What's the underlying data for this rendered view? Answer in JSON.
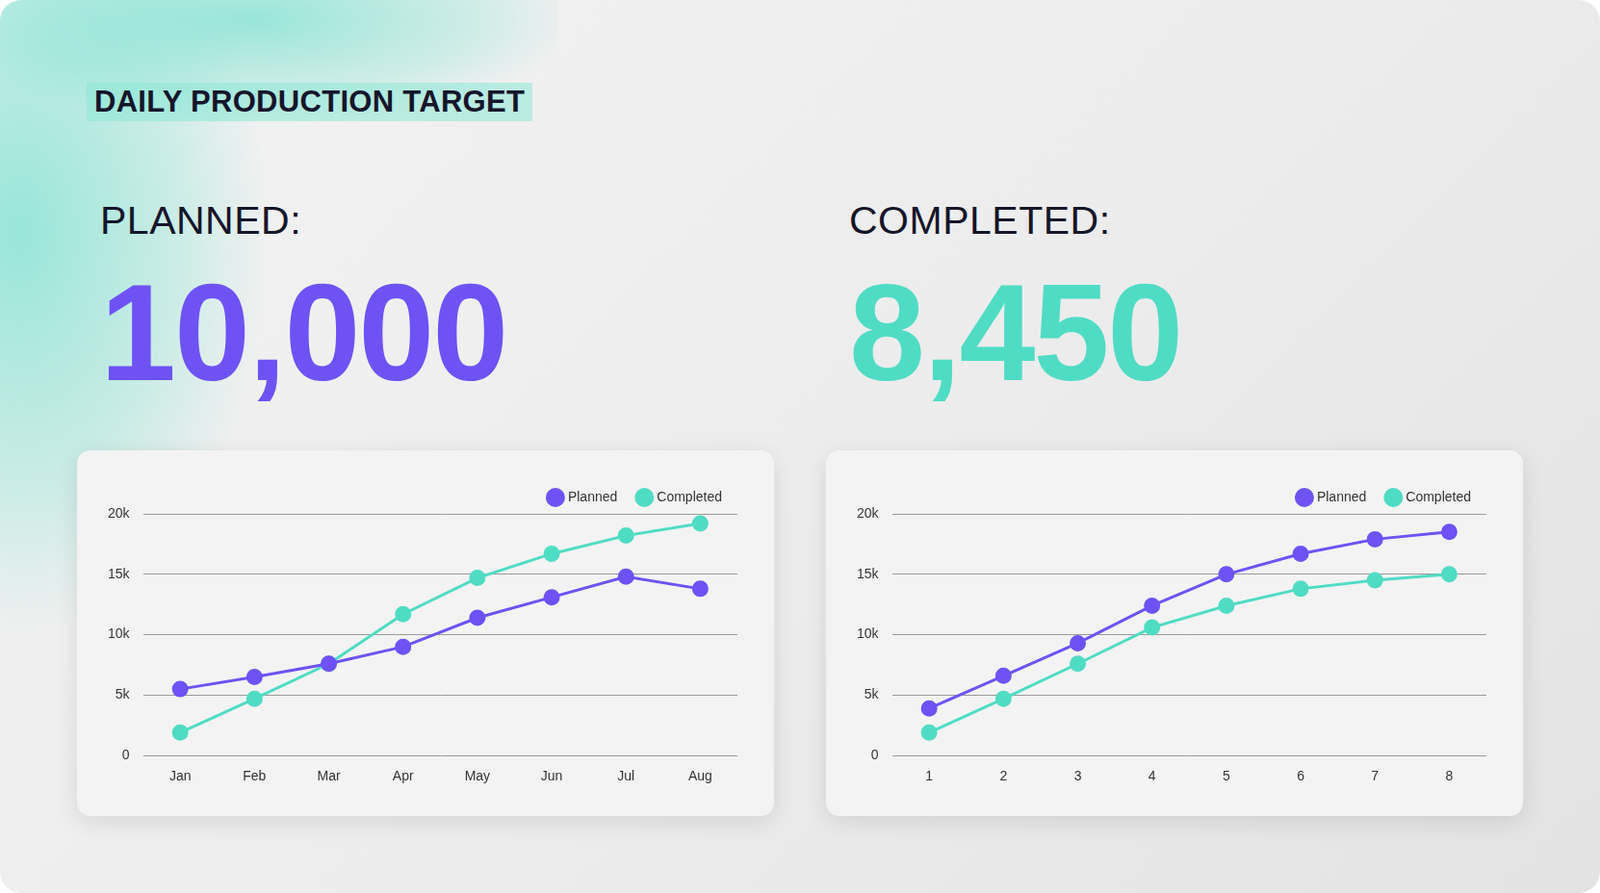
{
  "header": {
    "title": "DAILY PRODUCTION TARGET"
  },
  "kpis": [
    {
      "label": "PLANNED:",
      "value": "10,000",
      "color": "#6e52f5"
    },
    {
      "label": "COMPLETED:",
      "value": "8,450",
      "color": "#4fdcc4"
    }
  ],
  "chart_data": [
    {
      "type": "line",
      "categories": [
        "Jan",
        "Feb",
        "Mar",
        "Apr",
        "May",
        "Jun",
        "Jul",
        "Aug"
      ],
      "series": [
        {
          "name": "Planned",
          "color": "#6e52f5",
          "values": [
            5500,
            6500,
            7600,
            9000,
            11400,
            13100,
            14800,
            13800
          ]
        },
        {
          "name": "Completed",
          "color": "#4fdcc4",
          "values": [
            1900,
            4700,
            7600,
            11700,
            14700,
            16700,
            18200,
            19200
          ]
        }
      ],
      "ylim": [
        0,
        20000
      ],
      "yticks": [
        0,
        {
          "value": 5000,
          "label": "5k"
        },
        {
          "value": 10000,
          "label": "10k"
        },
        {
          "value": 15000,
          "label": "15k"
        },
        {
          "value": 20000,
          "label": "20k"
        }
      ],
      "grid": "y",
      "legend": "top-right",
      "marker": "circle",
      "line_style": "solid"
    },
    {
      "type": "line",
      "categories": [
        "1",
        "2",
        "3",
        "4",
        "5",
        "6",
        "7",
        "8"
      ],
      "series": [
        {
          "name": "Planned",
          "color": "#6e52f5",
          "values": [
            3900,
            6600,
            9300,
            12400,
            15000,
            16700,
            17900,
            18500
          ]
        },
        {
          "name": "Completed",
          "color": "#4fdcc4",
          "values": [
            1900,
            4700,
            7600,
            10600,
            12400,
            13800,
            14500,
            15000
          ]
        }
      ],
      "ylim": [
        0,
        20000
      ],
      "yticks": [
        0,
        {
          "value": 5000,
          "label": "5k"
        },
        {
          "value": 10000,
          "label": "10k"
        },
        {
          "value": 15000,
          "label": "15k"
        },
        {
          "value": 20000,
          "label": "20k"
        }
      ],
      "grid": "y",
      "legend": "top-right",
      "marker": "circle",
      "line_style": "solid"
    }
  ]
}
